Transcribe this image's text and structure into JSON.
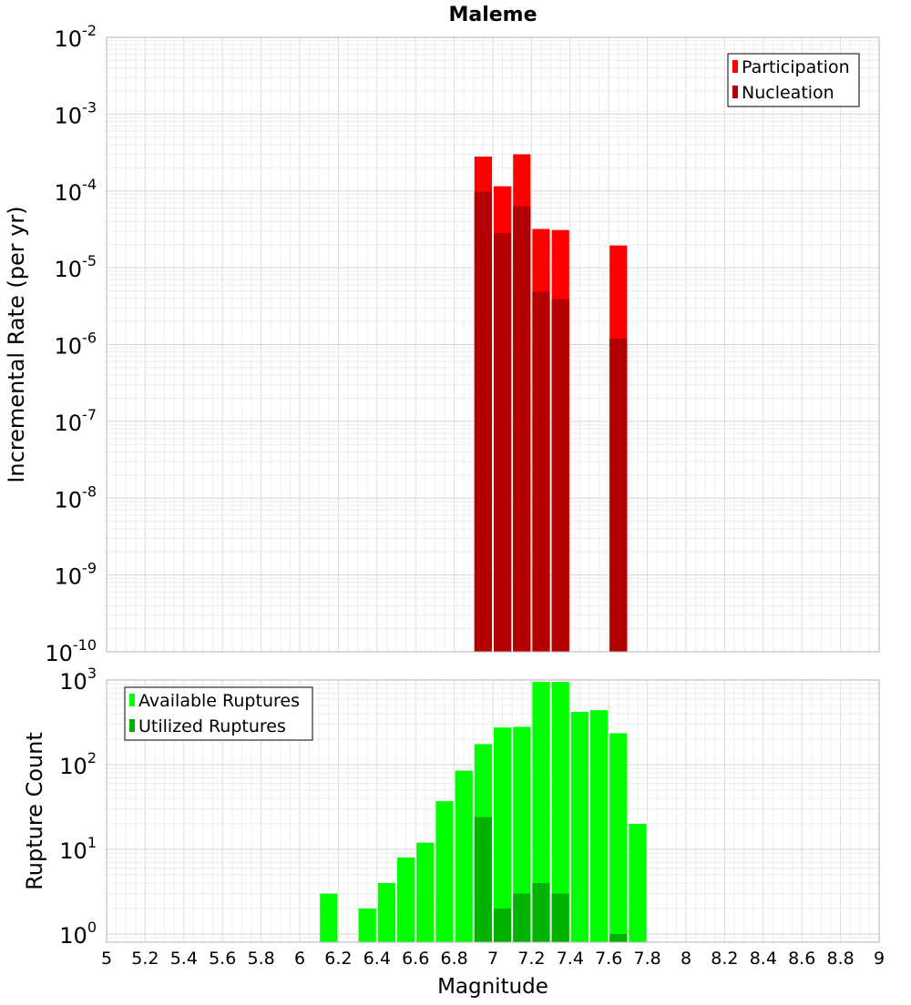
{
  "chart_data": [
    {
      "type": "bar",
      "title": "Maleme",
      "xlabel": "",
      "ylabel": "Incremental Rate (per yr)",
      "yscale": "log",
      "ylim": [
        1e-10,
        0.01
      ],
      "xlim": [
        5,
        9
      ],
      "bar_width": 0.1,
      "grid": true,
      "legend_position": "top-right",
      "y_tick_labels": [
        {
          "base": "10",
          "exp": "-10"
        },
        {
          "base": "10",
          "exp": "-9"
        },
        {
          "base": "10",
          "exp": "-8"
        },
        {
          "base": "10",
          "exp": "-7"
        },
        {
          "base": "10",
          "exp": "-6"
        },
        {
          "base": "10",
          "exp": "-5"
        },
        {
          "base": "10",
          "exp": "-4"
        },
        {
          "base": "10",
          "exp": "-3"
        },
        {
          "base": "10",
          "exp": "-2"
        }
      ],
      "series": [
        {
          "name": "Participation",
          "color": "#ff0000",
          "points": [
            {
              "x": 6.95,
              "y": 0.00028
            },
            {
              "x": 7.05,
              "y": 0.000115
            },
            {
              "x": 7.15,
              "y": 0.0003
            },
            {
              "x": 7.25,
              "y": 3.2e-05
            },
            {
              "x": 7.35,
              "y": 3.1e-05
            },
            {
              "x": 7.65,
              "y": 1.95e-05
            }
          ]
        },
        {
          "name": "Nucleation",
          "color": "#b30000",
          "points": [
            {
              "x": 6.95,
              "y": 9.7e-05
            },
            {
              "x": 7.05,
              "y": 2.8e-05
            },
            {
              "x": 7.15,
              "y": 6.3e-05
            },
            {
              "x": 7.25,
              "y": 4.9e-06
            },
            {
              "x": 7.35,
              "y": 3.9e-06
            },
            {
              "x": 7.65,
              "y": 1.2e-06
            }
          ]
        }
      ]
    },
    {
      "type": "bar",
      "title": "",
      "xlabel": "Magnitude",
      "ylabel": "Rupture Count",
      "yscale": "log",
      "ylim": [
        0.8,
        1000
      ],
      "xlim": [
        5,
        9
      ],
      "bar_width": 0.1,
      "grid": true,
      "legend_position": "top-left",
      "x_tick_labels": [
        "5",
        "5.2",
        "5.4",
        "5.6",
        "5.8",
        "6",
        "6.2",
        "6.4",
        "6.6",
        "6.8",
        "7",
        "7.2",
        "7.4",
        "7.6",
        "7.8",
        "8",
        "8.2",
        "8.4",
        "8.6",
        "8.8",
        "9"
      ],
      "y_tick_labels": [
        {
          "base": "10",
          "exp": "0"
        },
        {
          "base": "10",
          "exp": "1"
        },
        {
          "base": "10",
          "exp": "2"
        },
        {
          "base": "10",
          "exp": "3"
        }
      ],
      "series": [
        {
          "name": "Available Ruptures",
          "color": "#00ff00",
          "points": [
            {
              "x": 6.15,
              "y": 3
            },
            {
              "x": 6.35,
              "y": 2
            },
            {
              "x": 6.45,
              "y": 4
            },
            {
              "x": 6.55,
              "y": 8
            },
            {
              "x": 6.65,
              "y": 12
            },
            {
              "x": 6.75,
              "y": 37
            },
            {
              "x": 6.85,
              "y": 85
            },
            {
              "x": 6.95,
              "y": 175
            },
            {
              "x": 7.05,
              "y": 275
            },
            {
              "x": 7.15,
              "y": 280
            },
            {
              "x": 7.25,
              "y": 950
            },
            {
              "x": 7.35,
              "y": 950
            },
            {
              "x": 7.45,
              "y": 420
            },
            {
              "x": 7.55,
              "y": 440
            },
            {
              "x": 7.65,
              "y": 235
            },
            {
              "x": 7.75,
              "y": 20
            }
          ]
        },
        {
          "name": "Utilized Ruptures",
          "color": "#00b300",
          "points": [
            {
              "x": 6.95,
              "y": 24
            },
            {
              "x": 7.05,
              "y": 2
            },
            {
              "x": 7.15,
              "y": 3
            },
            {
              "x": 7.25,
              "y": 4
            },
            {
              "x": 7.35,
              "y": 3
            },
            {
              "x": 7.65,
              "y": 1
            }
          ]
        }
      ]
    }
  ]
}
